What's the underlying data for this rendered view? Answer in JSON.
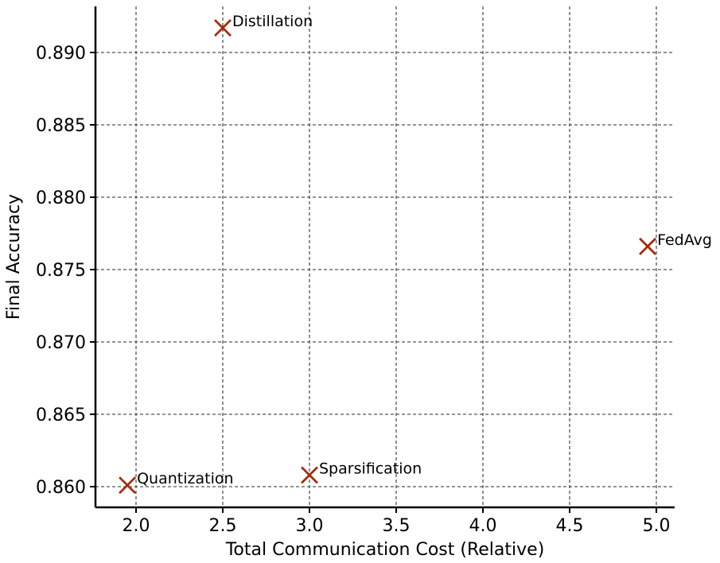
{
  "chart_data": {
    "type": "scatter",
    "title": "",
    "xlabel": "Total Communication Cost (Relative)",
    "ylabel": "Final Accuracy",
    "xlim": [
      1.8,
      5.05
    ],
    "ylim": [
      0.8585,
      0.8925
    ],
    "xticks": [
      2.0,
      2.5,
      3.0,
      3.5,
      4.0,
      4.5,
      5.0
    ],
    "xtick_labels": [
      "2.0",
      "2.5",
      "3.0",
      "3.5",
      "4.0",
      "4.5",
      "5.0"
    ],
    "yticks": [
      0.86,
      0.865,
      0.87,
      0.875,
      0.88,
      0.885,
      0.89
    ],
    "ytick_labels": [
      "0.860",
      "0.865",
      "0.870",
      "0.875",
      "0.880",
      "0.885",
      "0.890"
    ],
    "grid": true,
    "marker": "x",
    "marker_color": "#a52a0a",
    "points": [
      {
        "label": "Distillation",
        "x": 2.5,
        "y": 0.8917
      },
      {
        "label": "FedAvg",
        "x": 4.95,
        "y": 0.8766
      },
      {
        "label": "Sparsification",
        "x": 3.0,
        "y": 0.8608
      },
      {
        "label": "Quantization",
        "x": 1.95,
        "y": 0.8601
      }
    ]
  }
}
